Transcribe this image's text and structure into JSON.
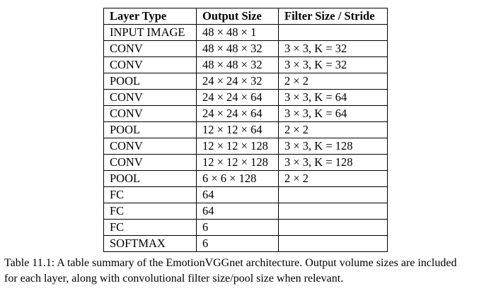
{
  "table": {
    "headers": [
      "Layer Type",
      "Output Size",
      "Filter Size / Stride"
    ],
    "rows": [
      [
        "INPUT IMAGE",
        "48 × 48 × 1",
        ""
      ],
      [
        "CONV",
        "48 × 48 × 32",
        "3 × 3, K = 32"
      ],
      [
        "CONV",
        "48 × 48 × 32",
        "3 × 3, K = 32"
      ],
      [
        "POOL",
        "24 × 24 × 32",
        "2 × 2"
      ],
      [
        "CONV",
        "24 × 24 × 64",
        "3 × 3, K = 64"
      ],
      [
        "CONV",
        "24 × 24 × 64",
        "3 × 3, K = 64"
      ],
      [
        "POOL",
        "12 × 12 × 64",
        "2 × 2"
      ],
      [
        "CONV",
        "12 × 12 × 128",
        "3 × 3, K = 128"
      ],
      [
        "CONV",
        "12 × 12 × 128",
        "3 × 3, K = 128"
      ],
      [
        "POOL",
        "6 × 6 × 128",
        "2 × 2"
      ],
      [
        "FC",
        "64",
        ""
      ],
      [
        "FC",
        "64",
        ""
      ],
      [
        "FC",
        "6",
        ""
      ],
      [
        "SOFTMAX",
        "6",
        ""
      ]
    ]
  },
  "caption": {
    "line1": "Table 11.1: A table summary of the EmotionVGGnet architecture. Output volume sizes are included",
    "line2": "for each layer, along with convolutional filter size/pool size when relevant."
  }
}
